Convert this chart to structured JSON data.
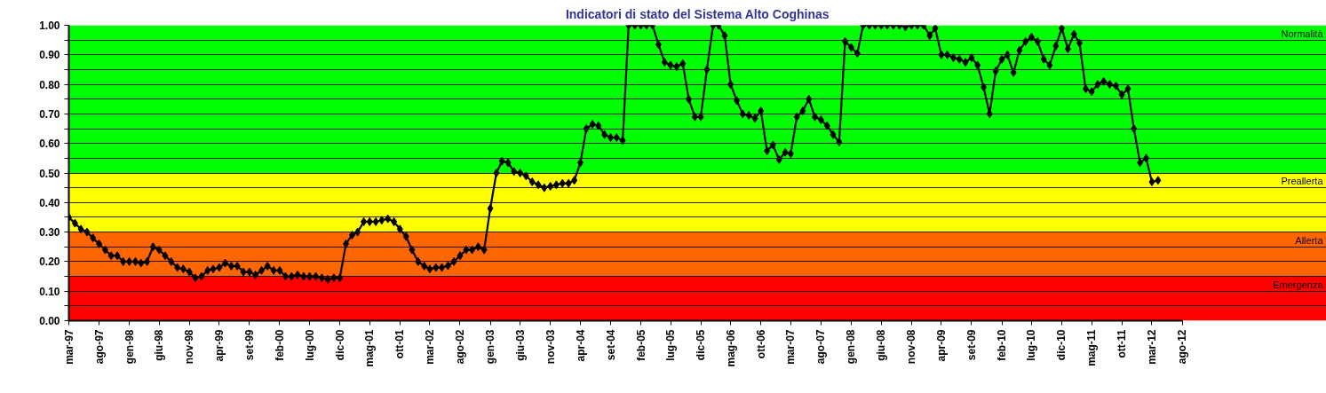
{
  "chart_data": {
    "type": "line",
    "title": "Indicatori di stato del Sistema Alto Coghinas",
    "x": [
      "1997-03",
      "1997-04",
      "1997-05",
      "1997-06",
      "1997-07",
      "1997-08",
      "1997-09",
      "1997-10",
      "1997-11",
      "1997-12",
      "1998-01",
      "1998-02",
      "1998-03",
      "1998-04",
      "1998-05",
      "1998-06",
      "1998-07",
      "1998-08",
      "1998-09",
      "1998-10",
      "1998-11",
      "1998-12",
      "1999-01",
      "1999-02",
      "1999-03",
      "1999-04",
      "1999-05",
      "1999-06",
      "1999-07",
      "1999-08",
      "1999-09",
      "1999-10",
      "1999-11",
      "1999-12",
      "2000-01",
      "2000-02",
      "2000-03",
      "2000-04",
      "2000-05",
      "2000-06",
      "2000-07",
      "2000-08",
      "2000-09",
      "2000-10",
      "2000-11",
      "2000-12",
      "2001-01",
      "2001-02",
      "2001-03",
      "2001-04",
      "2001-05",
      "2001-06",
      "2001-07",
      "2001-08",
      "2001-09",
      "2001-10",
      "2001-11",
      "2001-12",
      "2002-01",
      "2002-02",
      "2002-03",
      "2002-04",
      "2002-05",
      "2002-06",
      "2002-07",
      "2002-08",
      "2002-09",
      "2002-10",
      "2002-11",
      "2002-12",
      "2003-01",
      "2003-02",
      "2003-03",
      "2003-04",
      "2003-05",
      "2003-06",
      "2003-07",
      "2003-08",
      "2003-09",
      "2003-10",
      "2003-11",
      "2003-12",
      "2004-01",
      "2004-02",
      "2004-03",
      "2004-04",
      "2004-05",
      "2004-06",
      "2004-07",
      "2004-08",
      "2004-09",
      "2004-10",
      "2004-11",
      "2004-12",
      "2005-01",
      "2005-02",
      "2005-03",
      "2005-04",
      "2005-05",
      "2005-06",
      "2005-07",
      "2005-08",
      "2005-09",
      "2005-10",
      "2005-11",
      "2005-12",
      "2006-01",
      "2006-02",
      "2006-03",
      "2006-04",
      "2006-05",
      "2006-06",
      "2006-07",
      "2006-08",
      "2006-09",
      "2006-10",
      "2006-11",
      "2006-12",
      "2007-01",
      "2007-02",
      "2007-03",
      "2007-04",
      "2007-05",
      "2007-06",
      "2007-07",
      "2007-08",
      "2007-09",
      "2007-10",
      "2007-11",
      "2007-12",
      "2008-01",
      "2008-02",
      "2008-03",
      "2008-04",
      "2008-05",
      "2008-06",
      "2008-07",
      "2008-08",
      "2008-09",
      "2008-10",
      "2008-11",
      "2008-12",
      "2009-01",
      "2009-02",
      "2009-03",
      "2009-04",
      "2009-05",
      "2009-06",
      "2009-07",
      "2009-08",
      "2009-09",
      "2009-10",
      "2009-11",
      "2009-12",
      "2010-01",
      "2010-02",
      "2010-03",
      "2010-04",
      "2010-05",
      "2010-06",
      "2010-07",
      "2010-08",
      "2010-09",
      "2010-10",
      "2010-11",
      "2010-12",
      "2011-01",
      "2011-02",
      "2011-03",
      "2011-04",
      "2011-05",
      "2011-06",
      "2011-07",
      "2011-08",
      "2011-09",
      "2011-10",
      "2011-11",
      "2011-12",
      "2012-01",
      "2012-02",
      "2012-03",
      "2012-04"
    ],
    "series": [
      {
        "color": "#000000",
        "values": [
          0.35,
          0.33,
          0.31,
          0.3,
          0.28,
          0.26,
          0.24,
          0.22,
          0.22,
          0.2,
          0.2,
          0.2,
          0.195,
          0.2,
          0.25,
          0.24,
          0.22,
          0.2,
          0.18,
          0.175,
          0.165,
          0.145,
          0.15,
          0.17,
          0.175,
          0.18,
          0.195,
          0.185,
          0.185,
          0.165,
          0.165,
          0.155,
          0.17,
          0.185,
          0.17,
          0.17,
          0.15,
          0.15,
          0.155,
          0.15,
          0.15,
          0.15,
          0.145,
          0.14,
          0.145,
          0.145,
          0.26,
          0.29,
          0.3,
          0.335,
          0.335,
          0.335,
          0.34,
          0.345,
          0.335,
          0.31,
          0.285,
          0.24,
          0.2,
          0.185,
          0.175,
          0.18,
          0.18,
          0.186,
          0.2,
          0.22,
          0.24,
          0.24,
          0.25,
          0.24,
          0.38,
          0.5,
          0.54,
          0.535,
          0.505,
          0.5,
          0.49,
          0.47,
          0.46,
          0.45,
          0.455,
          0.46,
          0.465,
          0.465,
          0.475,
          0.535,
          0.65,
          0.665,
          0.66,
          0.63,
          0.62,
          0.62,
          0.61,
          1.0,
          1.0,
          1.0,
          1.0,
          1.0,
          0.935,
          0.875,
          0.865,
          0.86,
          0.87,
          0.75,
          0.69,
          0.69,
          0.85,
          1.0,
          1.0,
          0.965,
          0.8,
          0.745,
          0.7,
          0.695,
          0.685,
          0.71,
          0.575,
          0.595,
          0.545,
          0.57,
          0.565,
          0.69,
          0.71,
          0.75,
          0.69,
          0.68,
          0.66,
          0.63,
          0.605,
          0.945,
          0.925,
          0.905,
          1.0,
          1.0,
          1.0,
          1.0,
          1.0,
          1.0,
          1.0,
          0.995,
          1.0,
          1.0,
          1.0,
          0.965,
          0.99,
          0.9,
          0.9,
          0.89,
          0.885,
          0.875,
          0.89,
          0.865,
          0.79,
          0.7,
          0.845,
          0.885,
          0.9,
          0.84,
          0.915,
          0.945,
          0.96,
          0.945,
          0.885,
          0.865,
          0.93,
          0.99,
          0.92,
          0.97,
          0.94,
          0.785,
          0.775,
          0.8,
          0.81,
          0.8,
          0.795,
          0.765,
          0.785,
          0.65,
          0.535,
          0.55,
          0.47,
          0.475
        ]
      }
    ],
    "xlim": [
      "1997-03",
      "2014-08"
    ],
    "xticks": [
      {
        "value": "1997-03",
        "label": "mar-97"
      },
      {
        "value": "1997-08",
        "label": "ago-97"
      },
      {
        "value": "1998-01",
        "label": "gen-98"
      },
      {
        "value": "1998-06",
        "label": "giu-98"
      },
      {
        "value": "1998-11",
        "label": "nov-98"
      },
      {
        "value": "1999-04",
        "label": "apr-99"
      },
      {
        "value": "1999-09",
        "label": "set-99"
      },
      {
        "value": "2000-02",
        "label": "feb-00"
      },
      {
        "value": "2000-07",
        "label": "lug-00"
      },
      {
        "value": "2000-12",
        "label": "dic-00"
      },
      {
        "value": "2001-05",
        "label": "mag-01"
      },
      {
        "value": "2001-10",
        "label": "ott-01"
      },
      {
        "value": "2002-03",
        "label": "mar-02"
      },
      {
        "value": "2002-08",
        "label": "ago-02"
      },
      {
        "value": "2003-01",
        "label": "gen-03"
      },
      {
        "value": "2003-06",
        "label": "giu-03"
      },
      {
        "value": "2003-11",
        "label": "nov-03"
      },
      {
        "value": "2004-04",
        "label": "apr-04"
      },
      {
        "value": "2004-09",
        "label": "set-04"
      },
      {
        "value": "2005-02",
        "label": "feb-05"
      },
      {
        "value": "2005-07",
        "label": "lug-05"
      },
      {
        "value": "2005-12",
        "label": "dic-05"
      },
      {
        "value": "2006-05",
        "label": "mag-06"
      },
      {
        "value": "2006-10",
        "label": "ott-06"
      },
      {
        "value": "2007-03",
        "label": "mar-07"
      },
      {
        "value": "2007-08",
        "label": "ago-07"
      },
      {
        "value": "2008-01",
        "label": "gen-08"
      },
      {
        "value": "2008-06",
        "label": "giu-08"
      },
      {
        "value": "2008-11",
        "label": "nov-08"
      },
      {
        "value": "2009-04",
        "label": "apr-09"
      },
      {
        "value": "2009-09",
        "label": "set-09"
      },
      {
        "value": "2010-02",
        "label": "feb-10"
      },
      {
        "value": "2010-07",
        "label": "lug-10"
      },
      {
        "value": "2010-12",
        "label": "dic-10"
      },
      {
        "value": "2011-05",
        "label": "mag-11"
      },
      {
        "value": "2011-10",
        "label": "ott-11"
      },
      {
        "value": "2012-03",
        "label": "mar-12"
      },
      {
        "value": "2012-08",
        "label": "ago-12"
      }
    ],
    "ylim": [
      0,
      1
    ],
    "yticks": [
      {
        "value": 0,
        "label": "0.00"
      },
      {
        "value": 0.05,
        "label": null
      },
      {
        "value": 0.1,
        "label": "0.10"
      },
      {
        "value": 0.15,
        "label": null
      },
      {
        "value": 0.2,
        "label": "0.20"
      },
      {
        "value": 0.25,
        "label": null
      },
      {
        "value": 0.3,
        "label": "0.30"
      },
      {
        "value": 0.35,
        "label": null
      },
      {
        "value": 0.4,
        "label": "0.40"
      },
      {
        "value": 0.45,
        "label": null
      },
      {
        "value": 0.5,
        "label": "0.50"
      },
      {
        "value": 0.55,
        "label": null
      },
      {
        "value": 0.6,
        "label": "0.60"
      },
      {
        "value": 0.65,
        "label": null
      },
      {
        "value": 0.7,
        "label": "0.70"
      },
      {
        "value": 0.75,
        "label": null
      },
      {
        "value": 0.8,
        "label": "0.80"
      },
      {
        "value": 0.85,
        "label": null
      },
      {
        "value": 0.9,
        "label": "0.90"
      },
      {
        "value": 0.95,
        "label": null
      },
      {
        "value": 1,
        "label": "1.00"
      }
    ],
    "bands": [
      {
        "axis": "y",
        "from": 0.5,
        "to": 1.0,
        "label": "Normalità",
        "color": "#00ff00"
      },
      {
        "axis": "y",
        "from": 0.3,
        "to": 0.5,
        "label": "Preallerta",
        "color": "#ffff00"
      },
      {
        "axis": "y",
        "from": 0.15,
        "to": 0.3,
        "label": "Allerta",
        "color": "#ff6600"
      },
      {
        "axis": "y",
        "from": 0.0,
        "to": 0.15,
        "label": "Emergenza",
        "color": "#ff0000"
      }
    ],
    "grid": "y",
    "marker": "diamond",
    "line_style": "solid"
  }
}
